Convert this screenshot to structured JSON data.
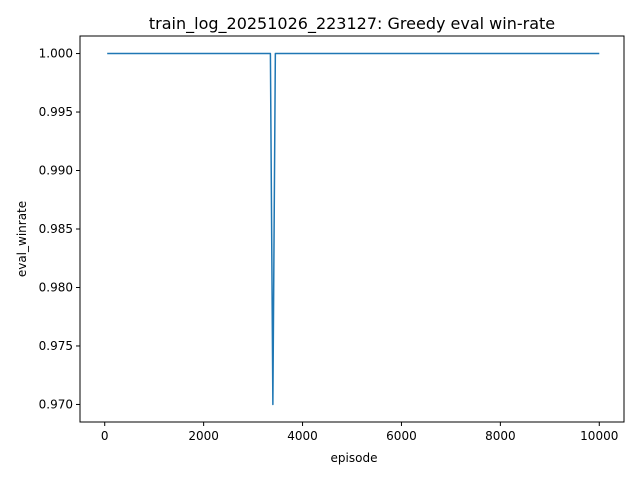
{
  "chart_data": {
    "type": "line",
    "title": "train_log_20251026_223127: Greedy eval win-rate",
    "xlabel": "episode",
    "ylabel": "eval_winrate",
    "xlim": [
      -500,
      10500
    ],
    "ylim": [
      0.9685,
      1.0015
    ],
    "xticks": [
      0,
      2000,
      4000,
      6000,
      8000,
      10000
    ],
    "yticks": [
      0.97,
      0.975,
      0.98,
      0.985,
      0.99,
      0.995,
      1.0
    ],
    "xtick_labels": [
      "0",
      "2000",
      "4000",
      "6000",
      "8000",
      "10000"
    ],
    "ytick_labels": [
      "0.970",
      "0.975",
      "0.980",
      "0.985",
      "0.990",
      "0.995",
      "1.000"
    ],
    "grid": false,
    "series": [
      {
        "color": "#1f77b4",
        "x": [
          50,
          3350,
          3400,
          3450,
          10000
        ],
        "y": [
          1.0,
          1.0,
          0.97,
          1.0,
          1.0
        ]
      }
    ]
  }
}
